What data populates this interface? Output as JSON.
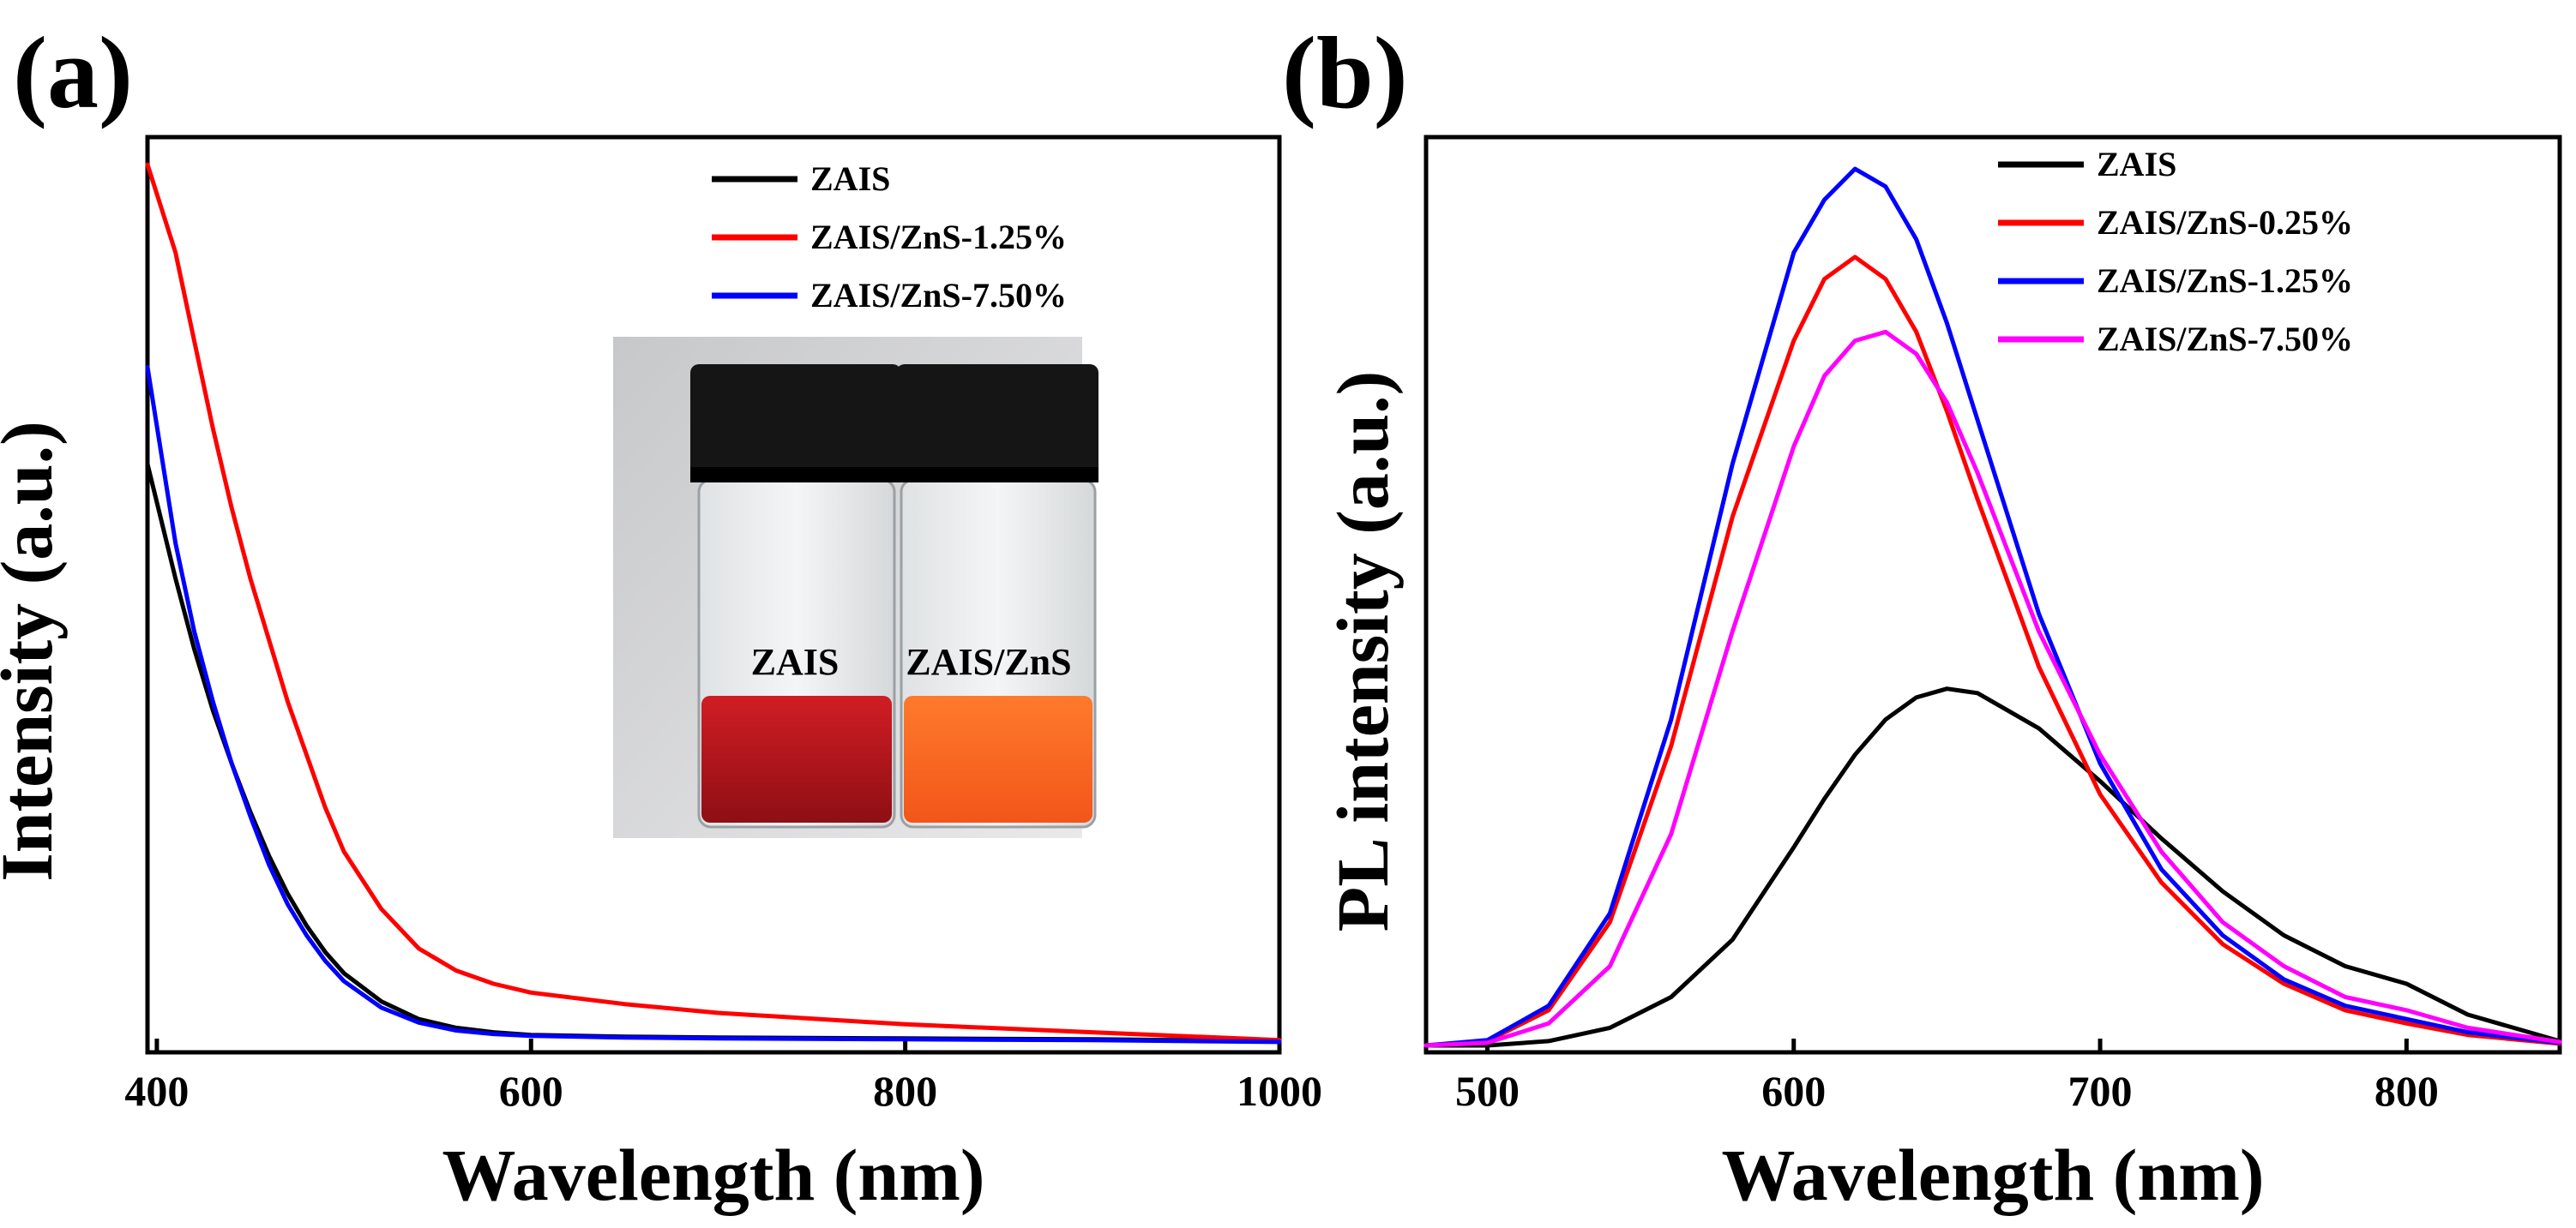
{
  "chart_data": [
    {
      "id": "a",
      "type": "line",
      "panel_label": "(a)",
      "title": "",
      "xlabel": "Wavelength (nm)",
      "ylabel": "Intensity (a.u.)",
      "xlim": [
        395,
        1000
      ],
      "ylim": [
        0,
        1.0
      ],
      "xticks": [
        400,
        600,
        800,
        1000
      ],
      "yticks": [],
      "grid": false,
      "legend": "top-right",
      "x": [
        395,
        410,
        420,
        430,
        440,
        450,
        460,
        470,
        480,
        490,
        500,
        520,
        540,
        560,
        580,
        600,
        650,
        700,
        800,
        900,
        1000
      ],
      "series": [
        {
          "name": "ZAIS",
          "color": "#000000",
          "values": [
            0.66,
            0.53,
            0.45,
            0.38,
            0.32,
            0.265,
            0.215,
            0.172,
            0.136,
            0.106,
            0.082,
            0.05,
            0.03,
            0.02,
            0.015,
            0.012,
            0.01,
            0.009,
            0.008,
            0.007,
            0.005
          ]
        },
        {
          "name": "ZAIS/ZnS-1.25%",
          "color": "#ff0000",
          "values": [
            1.0,
            0.9,
            0.8,
            0.7,
            0.61,
            0.53,
            0.46,
            0.39,
            0.33,
            0.27,
            0.22,
            0.155,
            0.11,
            0.085,
            0.07,
            0.06,
            0.047,
            0.037,
            0.024,
            0.015,
            0.006
          ]
        },
        {
          "name": "ZAIS/ZnS-7.50%",
          "color": "#0000ff",
          "values": [
            0.77,
            0.57,
            0.47,
            0.39,
            0.32,
            0.26,
            0.205,
            0.16,
            0.125,
            0.096,
            0.073,
            0.043,
            0.026,
            0.017,
            0.013,
            0.011,
            0.009,
            0.008,
            0.007,
            0.006,
            0.004
          ]
        }
      ],
      "inset": {
        "left_label": "ZAIS",
        "right_label": "ZAIS/ZnS"
      }
    },
    {
      "id": "b",
      "type": "line",
      "panel_label": "(b)",
      "title": "",
      "xlabel": "Wavelength (nm)",
      "ylabel": "PL intensity (a.u.)",
      "xlim": [
        480,
        850
      ],
      "ylim": [
        0,
        1.0
      ],
      "xticks": [
        500,
        600,
        700,
        800
      ],
      "yticks": [],
      "grid": false,
      "legend": "top-right",
      "x": [
        480,
        500,
        520,
        540,
        560,
        580,
        600,
        610,
        620,
        630,
        640,
        650,
        660,
        680,
        700,
        720,
        740,
        760,
        780,
        800,
        820,
        850
      ],
      "series": [
        {
          "name": "ZAIS",
          "color": "#000000",
          "values": [
            0.0,
            0.0,
            0.005,
            0.02,
            0.055,
            0.12,
            0.225,
            0.28,
            0.33,
            0.37,
            0.395,
            0.405,
            0.4,
            0.36,
            0.3,
            0.235,
            0.175,
            0.125,
            0.09,
            0.07,
            0.035,
            0.005
          ]
        },
        {
          "name": "ZAIS/ZnS-0.25%",
          "color": "#ff0000",
          "values": [
            0.0,
            0.005,
            0.04,
            0.14,
            0.34,
            0.6,
            0.8,
            0.87,
            0.895,
            0.87,
            0.81,
            0.72,
            0.62,
            0.43,
            0.285,
            0.185,
            0.115,
            0.07,
            0.04,
            0.025,
            0.012,
            0.002
          ]
        },
        {
          "name": "ZAIS/ZnS-1.25%",
          "color": "#0000ff",
          "values": [
            0.0,
            0.006,
            0.045,
            0.15,
            0.37,
            0.66,
            0.9,
            0.96,
            0.995,
            0.975,
            0.915,
            0.82,
            0.71,
            0.49,
            0.32,
            0.2,
            0.125,
            0.075,
            0.045,
            0.03,
            0.015,
            0.003
          ]
        },
        {
          "name": "ZAIS/ZnS-7.50%",
          "color": "#ff00ff",
          "values": [
            0.0,
            0.003,
            0.025,
            0.09,
            0.24,
            0.47,
            0.68,
            0.76,
            0.8,
            0.81,
            0.785,
            0.73,
            0.65,
            0.47,
            0.33,
            0.22,
            0.14,
            0.09,
            0.055,
            0.04,
            0.02,
            0.004
          ]
        }
      ]
    }
  ]
}
